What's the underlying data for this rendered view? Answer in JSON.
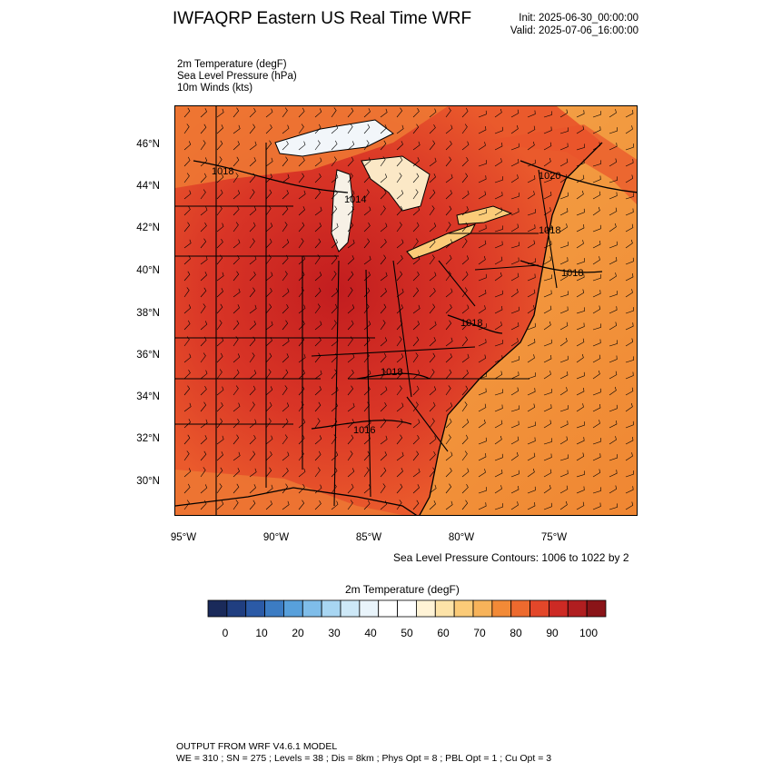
{
  "header": {
    "title": "IWFAQRP Eastern US Real Time WRF",
    "init": "Init: 2025-06-30_00:00:00",
    "valid": "Valid: 2025-07-06_16:00:00"
  },
  "variables": [
    "2m Temperature   (degF)",
    "Sea Level Pressure   (hPa)",
    "10m Winds   (kts)"
  ],
  "map": {
    "lat_labels": [
      "46°N",
      "44°N",
      "42°N",
      "40°N",
      "38°N",
      "36°N",
      "34°N",
      "32°N",
      "30°N"
    ],
    "lon_labels": [
      "95°W",
      "90°W",
      "85°W",
      "80°W",
      "75°W"
    ],
    "pressure_labels": [
      "1018",
      "1014",
      "1020",
      "1018",
      "1018",
      "1018",
      "1018",
      "1016"
    ],
    "colors": {
      "hot": "#c8201e",
      "warm": "#e9522b",
      "orange": "#f28a37",
      "light": "#f7b35a",
      "lake": "#f2f6fa"
    }
  },
  "contour_note": "Sea Level Pressure Contours: 1006 to 1022 by 2",
  "colorbar": {
    "title": "2m Temperature  (degF)",
    "labels": [
      "0",
      "10",
      "20",
      "30",
      "40",
      "50",
      "60",
      "70",
      "80",
      "90",
      "100"
    ],
    "colors": [
      "#1a2a5a",
      "#203e80",
      "#2b5aa6",
      "#3c7cc3",
      "#58a0db",
      "#7fbde9",
      "#a8d6f2",
      "#cde8f7",
      "#e9f4fb",
      "#ffffff",
      "#ffffff",
      "#fff3d6",
      "#fde3a8",
      "#fbcb78",
      "#f7b35a",
      "#f28a37",
      "#ed6a2e",
      "#e3472a",
      "#cd2a24",
      "#b01e20",
      "#8a1418"
    ]
  },
  "footer": {
    "line1": "OUTPUT FROM WRF V4.6.1 MODEL",
    "line2": "WE = 310 ; SN = 275 ; Levels = 38 ; Dis = 8km ; Phys Opt = 8 ; PBL Opt = 1 ; Cu Opt = 3"
  }
}
